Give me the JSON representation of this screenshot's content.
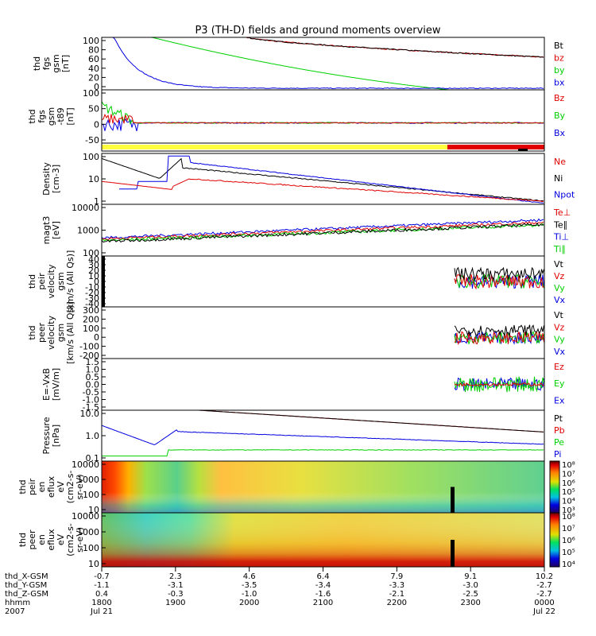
{
  "title": "P3 (TH-D) fields and ground moments overview",
  "colors": {
    "black": "#000000",
    "red": "#e00000",
    "green": "#00d000",
    "blue": "#0000e0",
    "yellow": "#ffff40"
  },
  "chart_data": [
    {
      "type": "line",
      "id": "fgs-btot",
      "ylabel": [
        "thd",
        "fgs",
        "gsm",
        "[nT]"
      ],
      "ylim": [
        0,
        100
      ],
      "yticks": [
        "100",
        "80",
        "60",
        "40",
        "20",
        "0"
      ],
      "series": [
        {
          "name": "Bt",
          "color": "black"
        },
        {
          "name": "bz",
          "color": "red"
        },
        {
          "name": "by",
          "color": "green"
        },
        {
          "name": "bx",
          "color": "blue"
        }
      ]
    },
    {
      "type": "line",
      "id": "fgs-dtrend",
      "ylabel": [
        "thd",
        "fgs",
        "gsm",
        "-t89",
        "[nT]"
      ],
      "ylim": [
        -60,
        100
      ],
      "yticks": [
        "100",
        "50",
        "0",
        "-50"
      ],
      "series": [
        {
          "name": "Bz",
          "color": "red"
        },
        {
          "name": "By",
          "color": "green"
        },
        {
          "name": "Bx",
          "color": "blue"
        }
      ]
    },
    {
      "type": "bar",
      "id": "mode-bar",
      "yticks": [],
      "series": []
    },
    {
      "type": "line",
      "id": "density",
      "ylabel": [
        "Density",
        "[cm-3]"
      ],
      "ylim": [
        0.3,
        200
      ],
      "yticks": [
        "100",
        "10",
        "1"
      ],
      "series": [
        {
          "name": "Ne",
          "color": "red"
        },
        {
          "name": "Ni",
          "color": "black"
        },
        {
          "name": "Npot",
          "color": "blue"
        }
      ]
    },
    {
      "type": "line",
      "id": "temperature",
      "ylabel": [
        "magt3",
        "[eV]"
      ],
      "ylim": [
        50,
        15000
      ],
      "yticks": [
        "10000",
        "1000",
        "100"
      ],
      "series": [
        {
          "name": "Te⊥",
          "color": "red"
        },
        {
          "name": "Te∥",
          "color": "black"
        },
        {
          "name": "Ti⊥",
          "color": "blue"
        },
        {
          "name": "Ti∥",
          "color": "green"
        }
      ]
    },
    {
      "type": "line",
      "id": "peir-velocity",
      "ylabel": [
        "thd",
        "peir",
        "velocity",
        "gsm",
        "[km/s (All Qs)]"
      ],
      "ylim": [
        -40,
        40
      ],
      "yticks": [
        "40",
        "30",
        "20",
        "10",
        "0",
        "-10",
        "-20",
        "-30",
        "-40"
      ],
      "series": [
        {
          "name": "Vt",
          "color": "black"
        },
        {
          "name": "Vz",
          "color": "red"
        },
        {
          "name": "Vy",
          "color": "green"
        },
        {
          "name": "Vx",
          "color": "blue"
        }
      ]
    },
    {
      "type": "line",
      "id": "peer-velocity",
      "ylabel": [
        "thd",
        "peer",
        "velocity",
        "gsm",
        "[km/s (All Qs)]"
      ],
      "ylim": [
        -200,
        300
      ],
      "yticks": [
        "300",
        "200",
        "100",
        "0",
        "-100",
        "-200"
      ],
      "series": [
        {
          "name": "Vt",
          "color": "black"
        },
        {
          "name": "Vz",
          "color": "red"
        },
        {
          "name": "Vy",
          "color": "green"
        },
        {
          "name": "Vx",
          "color": "blue"
        }
      ]
    },
    {
      "type": "line",
      "id": "efield",
      "ylabel": [
        "E=-VxB",
        "[mV/m]"
      ],
      "ylim": [
        -1.5,
        1.5
      ],
      "yticks": [
        "1.5",
        "1.0",
        "0.5",
        "0.0",
        "-0.5",
        "-1.0",
        "-1.5"
      ],
      "series": [
        {
          "name": "Ez",
          "color": "red"
        },
        {
          "name": "Ey",
          "color": "green"
        },
        {
          "name": "Ex",
          "color": "blue"
        }
      ]
    },
    {
      "type": "line",
      "id": "pressure",
      "ylabel": [
        "Pressure",
        "[nPa]"
      ],
      "ylim": [
        0.03,
        25
      ],
      "yticks": [
        "10.0",
        "1.0",
        "0.1"
      ],
      "series": [
        {
          "name": "Pt",
          "color": "black"
        },
        {
          "name": "Pb",
          "color": "red"
        },
        {
          "name": "Pe",
          "color": "green"
        },
        {
          "name": "Pi",
          "color": "blue"
        }
      ]
    },
    {
      "type": "heatmap",
      "id": "peir-en-eflux",
      "ylabel": [
        "thd",
        "peir",
        "en",
        "eflux",
        "eV",
        "(cm2-s-",
        "sr-eV)"
      ],
      "ylim": [
        5,
        20000
      ],
      "yticks": [
        "10000",
        "1000",
        "100",
        "10"
      ],
      "colorbar": {
        "labels": [
          "10⁸",
          "10⁷",
          "10⁶",
          "10⁵",
          "10⁴",
          "10³"
        ]
      },
      "series": []
    },
    {
      "type": "heatmap",
      "id": "peer-en-eflux",
      "ylabel": [
        "thd",
        "peer",
        "en",
        "eflux",
        "eV",
        "(cm2-s-",
        "sr-eV)"
      ],
      "ylim": [
        5,
        20000
      ],
      "yticks": [
        "10000",
        "1000",
        "100",
        "10"
      ],
      "colorbar": {
        "labels": [
          "10⁸",
          "10⁷",
          "10⁶",
          "10⁵",
          "10⁴"
        ]
      },
      "series": []
    }
  ],
  "axis": {
    "row_labels": [
      "thd_X-GSM",
      "thd_Y-GSM",
      "thd_Z-GSM",
      "hhmm",
      "2007"
    ],
    "ticks": [
      {
        "x": "-0.7",
        "y": "-1.1",
        "z": "0.4",
        "hhmm": "1800",
        "date": "Jul 21"
      },
      {
        "x": "2.3",
        "y": "-3.1",
        "z": "-0.3",
        "hhmm": "1900",
        "date": ""
      },
      {
        "x": "4.6",
        "y": "-3.5",
        "z": "-1.0",
        "hhmm": "2000",
        "date": ""
      },
      {
        "x": "6.4",
        "y": "-3.4",
        "z": "-1.6",
        "hhmm": "2100",
        "date": ""
      },
      {
        "x": "7.9",
        "y": "-3.3",
        "z": "-2.1",
        "hhmm": "2200",
        "date": ""
      },
      {
        "x": "9.1",
        "y": "-3.0",
        "z": "-2.5",
        "hhmm": "2300",
        "date": ""
      },
      {
        "x": "10.2",
        "y": "-2.7",
        "z": "-2.7",
        "hhmm": "0000",
        "date": "Jul 22"
      }
    ]
  }
}
